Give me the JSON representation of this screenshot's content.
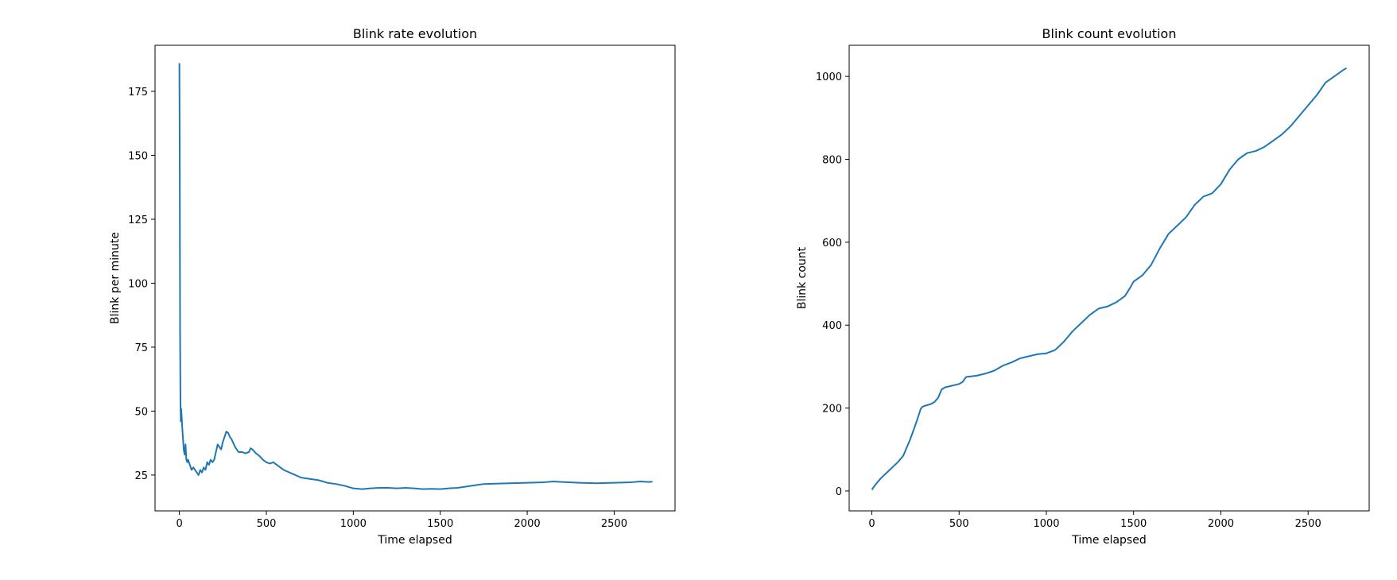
{
  "chart_data": [
    {
      "type": "line",
      "title": "Blink rate evolution",
      "xlabel": "Time elapsed",
      "ylabel": "Blink per minute",
      "xlim": [
        -140,
        2850
      ],
      "ylim": [
        11,
        193
      ],
      "xticks": [
        0,
        500,
        1000,
        1500,
        2000,
        2500
      ],
      "yticks": [
        25,
        50,
        75,
        100,
        125,
        150,
        175
      ],
      "xtick_labels": [
        "0",
        "500",
        "1000",
        "1500",
        "2000",
        "2500"
      ],
      "ytick_labels": [
        "25",
        "50",
        "75",
        "100",
        "125",
        "150",
        "175"
      ],
      "grid": false,
      "color": "#1f77b4",
      "series": [
        {
          "x": [
            0,
            2,
            4,
            6,
            8,
            10,
            13,
            16,
            20,
            25,
            30,
            35,
            40,
            45,
            50,
            60,
            70,
            80,
            90,
            100,
            110,
            120,
            130,
            140,
            150,
            160,
            170,
            180,
            190,
            200,
            210,
            220,
            230,
            240,
            250,
            260,
            270,
            280,
            290,
            300,
            320,
            340,
            360,
            380,
            400,
            410,
            420,
            440,
            460,
            480,
            500,
            520,
            540,
            560,
            580,
            600,
            650,
            700,
            750,
            800,
            850,
            900,
            950,
            1000,
            1050,
            1100,
            1150,
            1200,
            1250,
            1300,
            1350,
            1400,
            1450,
            1500,
            1550,
            1600,
            1650,
            1700,
            1750,
            1800,
            1900,
            2000,
            2100,
            2150,
            2200,
            2300,
            2400,
            2500,
            2600,
            2650,
            2700,
            2720
          ],
          "y": [
            186,
            150,
            80,
            55,
            46,
            51,
            48,
            44,
            40,
            35,
            33,
            37,
            31,
            30,
            31,
            29,
            27,
            28,
            27,
            26,
            25,
            27,
            26,
            28,
            27,
            30,
            29,
            31,
            30,
            31,
            34,
            37,
            36,
            35,
            38,
            40,
            42,
            41.5,
            40,
            39,
            36,
            34,
            34,
            33.5,
            34,
            35.5,
            35,
            33.5,
            32.5,
            31,
            30,
            29.5,
            30,
            29,
            28,
            27,
            25.5,
            24,
            23.5,
            23,
            22,
            21.5,
            20.8,
            19.8,
            19.5,
            19.8,
            20,
            20,
            19.8,
            20,
            19.8,
            19.5,
            19.6,
            19.5,
            19.8,
            20,
            20.5,
            21,
            21.5,
            21.6,
            21.8,
            22,
            22.2,
            22.5,
            22.3,
            22,
            21.8,
            22,
            22.2,
            22.5,
            22.3,
            22.4
          ]
        }
      ]
    },
    {
      "type": "line",
      "title": "Blink count evolution",
      "xlabel": "Time elapsed",
      "ylabel": "Blink count",
      "xlim": [
        -130,
        2850
      ],
      "ylim": [
        -48,
        1075
      ],
      "xticks": [
        0,
        500,
        1000,
        1500,
        2000,
        2500
      ],
      "yticks": [
        0,
        200,
        400,
        600,
        800,
        1000
      ],
      "xtick_labels": [
        "0",
        "500",
        "1000",
        "1500",
        "2000",
        "2500"
      ],
      "ytick_labels": [
        "0",
        "200",
        "400",
        "600",
        "800",
        "1000"
      ],
      "grid": false,
      "color": "#1f77b4",
      "series": [
        {
          "x": [
            0,
            20,
            50,
            100,
            150,
            180,
            200,
            220,
            240,
            260,
            270,
            280,
            290,
            300,
            340,
            360,
            380,
            400,
            420,
            500,
            520,
            540,
            600,
            650,
            700,
            750,
            800,
            850,
            900,
            950,
            1000,
            1050,
            1100,
            1150,
            1200,
            1250,
            1300,
            1350,
            1400,
            1450,
            1480,
            1500,
            1550,
            1600,
            1650,
            1700,
            1750,
            1800,
            1850,
            1900,
            1950,
            2000,
            2050,
            2100,
            2150,
            2200,
            2250,
            2300,
            2350,
            2400,
            2450,
            2500,
            2550,
            2600,
            2650,
            2700,
            2720
          ],
          "y": [
            3,
            15,
            30,
            50,
            70,
            85,
            105,
            125,
            148,
            172,
            185,
            198,
            203,
            205,
            210,
            215,
            225,
            245,
            250,
            258,
            263,
            275,
            278,
            283,
            290,
            302,
            310,
            320,
            325,
            330,
            332,
            340,
            360,
            385,
            405,
            425,
            440,
            445,
            455,
            470,
            490,
            505,
            520,
            545,
            585,
            620,
            640,
            660,
            690,
            710,
            718,
            740,
            775,
            800,
            815,
            820,
            830,
            845,
            860,
            880,
            905,
            930,
            955,
            985,
            1000,
            1015,
            1020
          ]
        }
      ]
    }
  ]
}
